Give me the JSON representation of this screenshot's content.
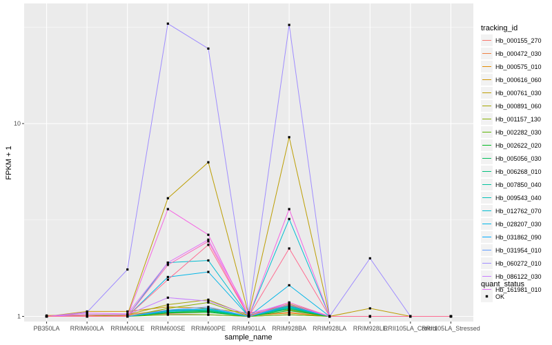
{
  "chart_data": {
    "type": "line",
    "xlabel": "sample_name",
    "ylabel": "FPKM + 1",
    "y_scale": "log10",
    "ylim": [
      0.94,
      42
    ],
    "y_ticks": [
      {
        "value": 1,
        "label": "1"
      },
      {
        "value": 10,
        "label": "10"
      }
    ],
    "grid": true,
    "legend_position": "right",
    "categories": [
      "PB350LA",
      "RRIM600LA",
      "RRIM600LE",
      "RRIM600SE",
      "RRIM600PE",
      "RRIM901LA",
      "RRIM928BA",
      "RRIM928LA",
      "RRIM928LE",
      "RRII105LA_Control",
      "RRII105LA_Stressed"
    ],
    "legend_title": "tracking_id",
    "marker_legend": {
      "title": "quant_status",
      "label": "OK"
    },
    "series": [
      {
        "name": "Hb_000155_270",
        "color": "#F8766D",
        "values": [
          1.0,
          1.0,
          1.01,
          1.03,
          1.02,
          1.0,
          1.02,
          1.0,
          1.0,
          1.0,
          1.0
        ]
      },
      {
        "name": "Hb_000472_030",
        "color": "#EE8043",
        "values": [
          1.0,
          1.01,
          1.02,
          1.08,
          1.07,
          1.01,
          1.05,
          1.0,
          1.0,
          1.0,
          1.0
        ]
      },
      {
        "name": "Hb_000575_010",
        "color": "#E18A00",
        "values": [
          1.01,
          1.02,
          1.01,
          1.04,
          1.06,
          1.01,
          1.04,
          1.0,
          1.0,
          1.0,
          1.0
        ]
      },
      {
        "name": "Hb_000616_060",
        "color": "#D09400",
        "values": [
          1.0,
          1.06,
          1.06,
          1.12,
          1.1,
          1.04,
          1.08,
          1.0,
          1.0,
          1.0,
          1.0
        ]
      },
      {
        "name": "Hb_000761_030",
        "color": "#BC9D00",
        "values": [
          1.0,
          1.02,
          1.02,
          4.1,
          6.3,
          1.02,
          8.5,
          1.0,
          1.1,
          1.0,
          1.0
        ]
      },
      {
        "name": "Hb_000891_060",
        "color": "#A3A500",
        "values": [
          1.0,
          1.0,
          1.02,
          1.15,
          1.22,
          1.01,
          1.16,
          1.0,
          1.0,
          1.0,
          1.0
        ]
      },
      {
        "name": "Hb_001157_130",
        "color": "#85AD00",
        "values": [
          1.0,
          1.0,
          1.0,
          1.1,
          1.18,
          1.0,
          1.14,
          1.0,
          1.0,
          1.0,
          1.0
        ]
      },
      {
        "name": "Hb_002282_030",
        "color": "#5BB300",
        "values": [
          1.0,
          1.0,
          1.0,
          1.02,
          1.02,
          1.0,
          1.02,
          1.0,
          1.0,
          1.0,
          1.0
        ]
      },
      {
        "name": "Hb_002622_020",
        "color": "#00B81F",
        "values": [
          1.0,
          1.0,
          1.0,
          1.04,
          1.05,
          1.0,
          1.07,
          1.0,
          1.0,
          1.0,
          1.0
        ]
      },
      {
        "name": "Hb_005056_030",
        "color": "#00BC59",
        "values": [
          1.0,
          1.0,
          1.0,
          1.05,
          1.06,
          1.0,
          1.09,
          1.0,
          1.0,
          1.0,
          1.0
        ]
      },
      {
        "name": "Hb_006268_010",
        "color": "#00BF7D",
        "values": [
          1.0,
          1.0,
          1.0,
          1.06,
          1.07,
          1.0,
          1.1,
          1.0,
          1.0,
          1.0,
          1.0
        ]
      },
      {
        "name": "Hb_007850_040",
        "color": "#00C19C",
        "values": [
          1.0,
          1.0,
          1.0,
          1.07,
          1.08,
          1.0,
          1.11,
          1.0,
          1.0,
          1.0,
          1.0
        ]
      },
      {
        "name": "Hb_009543_040",
        "color": "#00C0B8",
        "values": [
          1.0,
          1.0,
          1.0,
          1.08,
          1.09,
          1.0,
          1.12,
          1.0,
          1.0,
          1.0,
          1.0
        ]
      },
      {
        "name": "Hb_012762_070",
        "color": "#00BCD1",
        "values": [
          1.0,
          1.0,
          1.0,
          1.9,
          1.95,
          1.0,
          3.2,
          1.0,
          1.0,
          1.0,
          1.0
        ]
      },
      {
        "name": "Hb_028207_030",
        "color": "#00B5E7",
        "values": [
          1.0,
          1.0,
          1.0,
          1.6,
          1.7,
          1.0,
          1.45,
          1.0,
          1.0,
          1.0,
          1.0
        ]
      },
      {
        "name": "Hb_031862_090",
        "color": "#00A9FF",
        "values": [
          1.0,
          1.0,
          1.0,
          1.06,
          1.1,
          1.0,
          1.13,
          1.0,
          1.0,
          1.0,
          1.0
        ]
      },
      {
        "name": "Hb_031954_010",
        "color": "#619CFF",
        "values": [
          1.0,
          1.0,
          1.0,
          1.08,
          1.12,
          1.0,
          1.15,
          1.0,
          1.0,
          1.0,
          1.0
        ]
      },
      {
        "name": "Hb_060272_010",
        "color": "#9F8CFF",
        "values": [
          1.0,
          1.05,
          1.75,
          33.0,
          24.5,
          1.05,
          32.5,
          1.0,
          2.0,
          1.0,
          1.0
        ]
      },
      {
        "name": "Hb_086122_030",
        "color": "#C77CFF",
        "values": [
          1.0,
          1.02,
          1.02,
          1.25,
          1.2,
          1.02,
          1.18,
          1.0,
          1.0,
          1.0,
          1.0
        ]
      },
      {
        "name": "Hb_161981_010",
        "color": "#E36EF6",
        "values": [
          1.0,
          1.04,
          1.03,
          1.9,
          2.5,
          1.04,
          1.15,
          1.0,
          1.0,
          1.0,
          1.0
        ]
      },
      {
        "name": "",
        "color": "#F564E3",
        "values": [
          1.0,
          1.0,
          1.0,
          3.6,
          2.65,
          1.0,
          3.6,
          1.0,
          1.0,
          1.0,
          1.0
        ]
      },
      {
        "name": "",
        "color": "#FF62BC",
        "values": [
          1.0,
          1.0,
          1.0,
          1.85,
          2.45,
          1.0,
          1.18,
          1.0,
          1.0,
          1.0,
          1.0
        ]
      },
      {
        "name": "",
        "color": "#FF6C91",
        "values": [
          1.0,
          1.0,
          1.0,
          1.55,
          2.35,
          1.0,
          2.25,
          1.0,
          1.0,
          1.0,
          1.0
        ]
      }
    ]
  }
}
